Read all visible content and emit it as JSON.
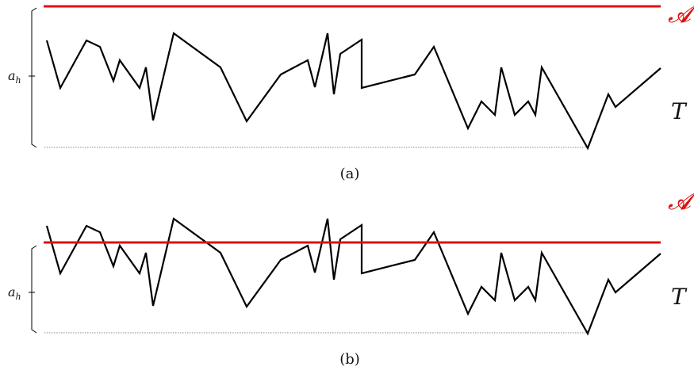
{
  "colors": {
    "line": "#000000",
    "accent": "#e01010",
    "dotted": "#888888"
  },
  "panels": [
    {
      "caption": "(a)",
      "a_label": "𝓐",
      "t_label": "T",
      "ah_main": "a",
      "ah_sub": "h"
    },
    {
      "caption": "(b)",
      "a_label": "𝓐",
      "t_label": "T",
      "ah_main": "a",
      "ah_sub": "h"
    }
  ]
}
